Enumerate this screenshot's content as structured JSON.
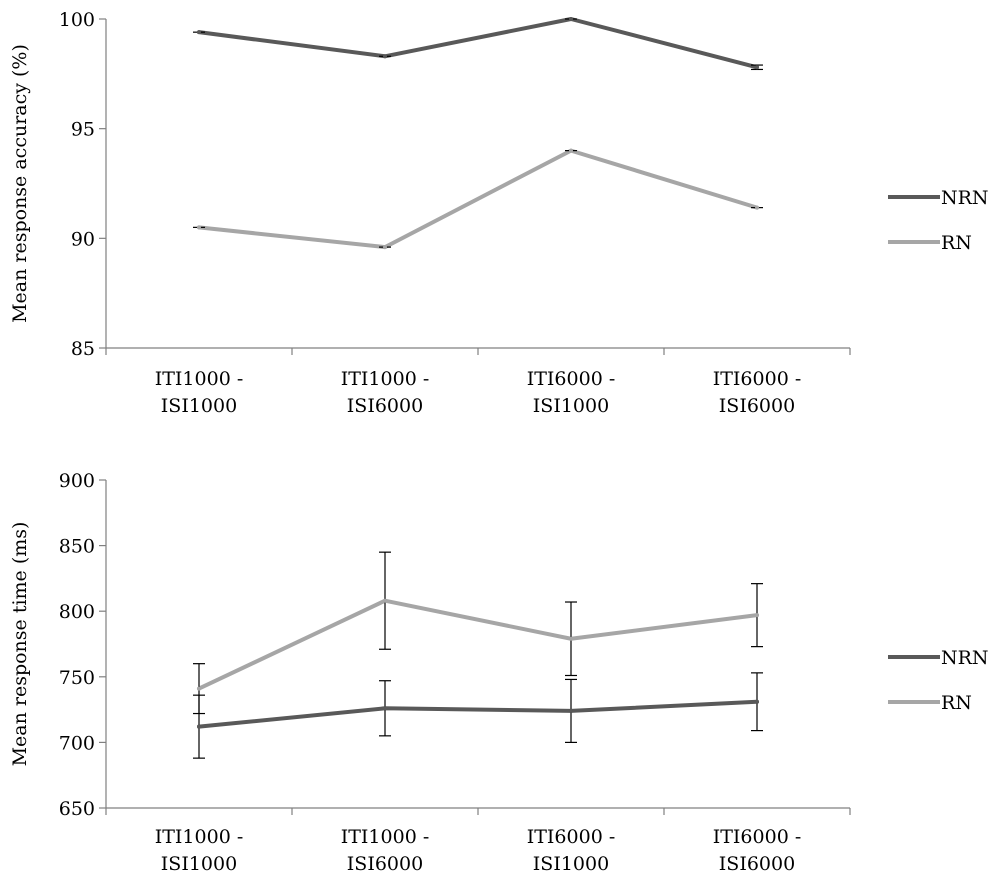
{
  "chart_data": [
    {
      "type": "line",
      "title": "",
      "ylabel": "Mean response accuracy (%)",
      "xlabel": "",
      "ylim": [
        85,
        100
      ],
      "yticks": [
        85,
        90,
        95,
        100
      ],
      "categories": [
        [
          "ITI1000 -",
          "ISI1000"
        ],
        [
          "ITI1000 -",
          "ISI6000"
        ],
        [
          "ITI6000 -",
          "ISI1000"
        ],
        [
          "ITI6000 -",
          "ISI6000"
        ]
      ],
      "legend_position": "right",
      "grid": false,
      "series": [
        {
          "name": "NRN",
          "color": "#595959",
          "values": [
            99.4,
            98.3,
            100.0,
            97.8
          ],
          "error": [
            0.0,
            0.0,
            0.0,
            0.1
          ]
        },
        {
          "name": "RN",
          "color": "#a6a6a6",
          "values": [
            90.5,
            89.6,
            94.0,
            91.4
          ],
          "error": [
            0.0,
            0.0,
            0.0,
            0.0
          ]
        }
      ]
    },
    {
      "type": "line",
      "title": "",
      "ylabel": "Mean response time (ms)",
      "xlabel": "",
      "ylim": [
        650,
        900
      ],
      "yticks": [
        650,
        700,
        750,
        800,
        850,
        900
      ],
      "categories": [
        [
          "ITI1000 -",
          "ISI1000"
        ],
        [
          "ITI1000 -",
          "ISI6000"
        ],
        [
          "ITI6000 -",
          "ISI1000"
        ],
        [
          "ITI6000 -",
          "ISI6000"
        ]
      ],
      "legend_position": "right",
      "grid": false,
      "series": [
        {
          "name": "NRN",
          "color": "#595959",
          "values": [
            712,
            726,
            724,
            731
          ],
          "error": [
            24,
            21,
            24,
            22
          ]
        },
        {
          "name": "RN",
          "color": "#a6a6a6",
          "values": [
            741,
            808,
            779,
            797
          ],
          "error": [
            19,
            37,
            28,
            24
          ]
        }
      ]
    }
  ]
}
